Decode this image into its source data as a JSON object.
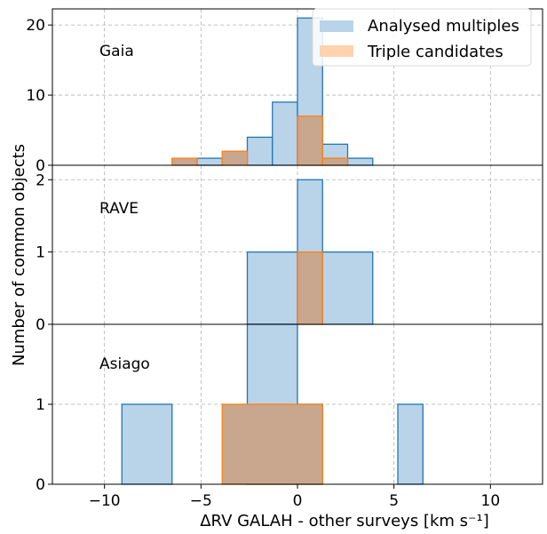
{
  "colors": {
    "multiples_fill": "#b9d3e9",
    "multiples_edge": "#1f77b4",
    "triples_fill": "#c8a78e",
    "triples_edge": "#ff7f0e",
    "legend_triples_swatch": "#ffd3b0",
    "grid": "#b0b0b0"
  },
  "chart_data": {
    "type": "histogram",
    "xlabel": "ΔRV GALAH - other surveys [km s⁻¹]",
    "ylabel": "Number of common objects",
    "xlim": [
      -12.7,
      12.7
    ],
    "xticks": [
      -10,
      -5,
      0,
      5,
      10
    ],
    "xtick_labels": [
      "−10",
      "−5",
      "0",
      "5",
      "10"
    ],
    "grid": true,
    "legend": {
      "placement": "top-right",
      "entries": [
        {
          "label": "Analysed multiples",
          "series": "multiples"
        },
        {
          "label": "Triple candidates",
          "series": "triples"
        }
      ]
    },
    "panels": [
      {
        "name": "Gaia",
        "ylim": [
          0,
          22.3
        ],
        "yticks": [
          0,
          10,
          20
        ],
        "series": [
          {
            "key": "multiples",
            "bins": [
              [
                -5.2,
                -3.9,
                1
              ],
              [
                -2.6,
                -1.3,
                4
              ],
              [
                -1.3,
                0,
                9
              ],
              [
                0,
                1.3,
                21
              ],
              [
                1.3,
                2.6,
                3
              ],
              [
                2.6,
                3.9,
                1
              ]
            ]
          },
          {
            "key": "triples",
            "bins": [
              [
                -6.5,
                -5.2,
                1
              ],
              [
                -3.9,
                -2.6,
                2
              ],
              [
                0,
                1.3,
                7
              ],
              [
                1.3,
                2.6,
                1
              ]
            ]
          }
        ]
      },
      {
        "name": "RAVE",
        "ylim": [
          0,
          2.2
        ],
        "yticks": [
          0,
          1,
          2
        ],
        "series": [
          {
            "key": "multiples",
            "bins": [
              [
                -2.6,
                0,
                1
              ],
              [
                0,
                1.3,
                2
              ],
              [
                1.3,
                3.9,
                1
              ]
            ]
          },
          {
            "key": "triples",
            "bins": [
              [
                0,
                1.3,
                1
              ]
            ]
          }
        ]
      },
      {
        "name": "Asiago",
        "ylim": [
          0,
          2.0
        ],
        "yticks": [
          0,
          1
        ],
        "series": [
          {
            "key": "multiples",
            "bins": [
              [
                -9.1,
                -6.5,
                1
              ],
              [
                -2.6,
                0,
                2
              ],
              [
                0,
                1.3,
                1
              ],
              [
                5.2,
                6.5,
                1
              ]
            ]
          },
          {
            "key": "triples",
            "bins": [
              [
                -3.9,
                1.3,
                1
              ]
            ]
          }
        ]
      }
    ]
  }
}
